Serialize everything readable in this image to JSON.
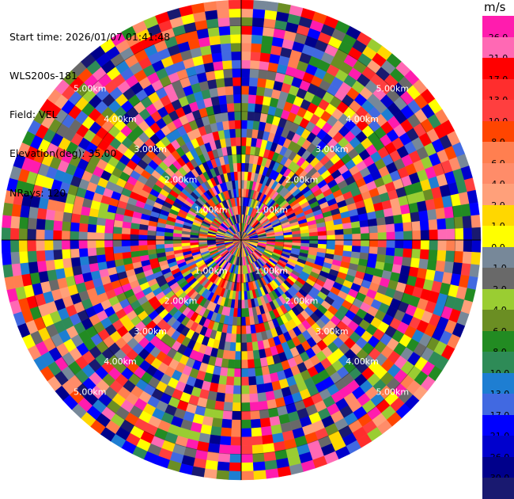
{
  "info": {
    "start_time": "Start time: 2026/01/07 01:41:48",
    "station": "WLS200s-181",
    "field": "Field: VEL",
    "elevation": "Elevation(deg): 35.00",
    "nrays": "NRays: 120"
  },
  "colorbar": {
    "unit": "m/s",
    "ticks": [
      "26.0",
      "21.0",
      "17.0",
      "13.0",
      "10.0",
      "8.0",
      "6.0",
      "4.0",
      "2.0",
      "1.0",
      "0.0",
      "-1.0",
      "-2.0",
      "-4.0",
      "-6.0",
      "-8.0",
      "-10.0",
      "-13.0",
      "-17.0",
      "-21.0",
      "-26.0",
      "-30.0"
    ],
    "colors": [
      "#ff1cae",
      "#ff69b4",
      "#ff0000",
      "#ff2d2d",
      "#ff3f3f",
      "#ff4500",
      "#ff7f50",
      "#ff8c69",
      "#ffa07a",
      "#ffd700",
      "#ffff00",
      "#778899",
      "#696969",
      "#9acd32",
      "#6b8e23",
      "#228b22",
      "#2e8b57",
      "#1e7ed2",
      "#4169e1",
      "#0000ff",
      "#0000cd",
      "#00008b",
      "#191970"
    ]
  },
  "chart_data": {
    "type": "heatmap",
    "projection": "polar PPI",
    "field": "VEL",
    "nrays": 120,
    "range_labels": [
      "1.00km",
      "2.00km",
      "3.00km",
      "4.00km",
      "5.00km"
    ],
    "max_range_km": 5.6,
    "value_range": [
      -30,
      30
    ]
  }
}
